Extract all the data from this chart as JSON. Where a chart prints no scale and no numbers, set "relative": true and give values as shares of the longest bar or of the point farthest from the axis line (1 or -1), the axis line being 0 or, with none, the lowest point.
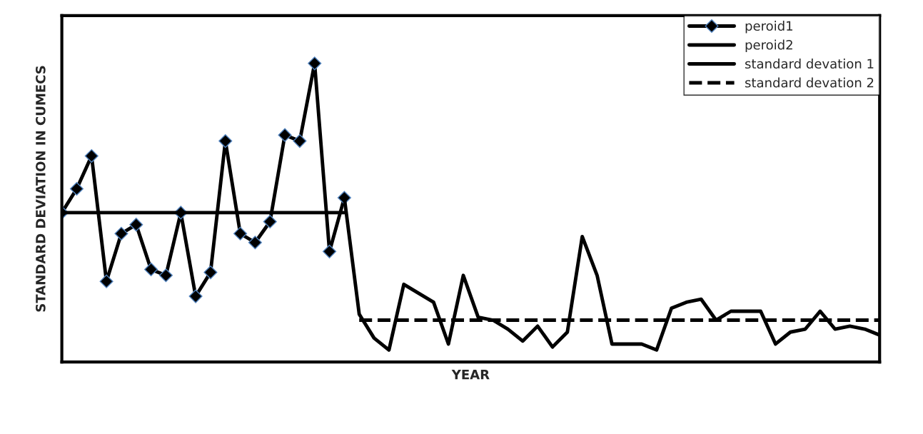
{
  "chart_data": {
    "type": "line",
    "relative": true,
    "xlabel": "YEAR",
    "ylabel": "STANDARD DEVIATION IN CUMECS",
    "categories": [
      null,
      null,
      null,
      null,
      null,
      null,
      null,
      null,
      null,
      null,
      null,
      null,
      null,
      null,
      null,
      null,
      null,
      null,
      null,
      null,
      null,
      null,
      null,
      null,
      null,
      null,
      null,
      null,
      null,
      null,
      null,
      null,
      null,
      null,
      null,
      null,
      null,
      null,
      null,
      null,
      null,
      null,
      null,
      null,
      null,
      null,
      null,
      null,
      null,
      null,
      null,
      null,
      null,
      null,
      null,
      null
    ],
    "legend": "top right",
    "series": [
      {
        "name": "peroid1",
        "color": "#000000",
        "marker": "diamond",
        "line_style": "solid",
        "values": [
          0.5,
          0.58,
          0.69,
          0.27,
          0.43,
          0.46,
          0.31,
          0.29,
          0.5,
          0.22,
          0.3,
          0.74,
          0.43,
          0.4,
          0.47,
          0.76,
          0.74,
          1.0,
          0.37,
          0.55,
          null,
          null,
          null,
          null,
          null,
          null,
          null,
          null,
          null,
          null,
          null,
          null,
          null,
          null,
          null,
          null,
          null,
          null,
          null,
          null,
          null,
          null,
          null,
          null,
          null,
          null,
          null,
          null,
          null,
          null,
          null,
          null,
          null,
          null,
          null,
          null
        ]
      },
      {
        "name": "peroid2",
        "color": "#000000",
        "marker": "none",
        "line_style": "solid",
        "values": [
          null,
          null,
          null,
          null,
          null,
          null,
          null,
          null,
          null,
          null,
          null,
          null,
          null,
          null,
          null,
          null,
          null,
          null,
          null,
          0.55,
          0.16,
          0.08,
          0.04,
          0.26,
          0.23,
          0.2,
          0.06,
          0.29,
          0.15,
          0.14,
          0.11,
          0.07,
          0.12,
          0.05,
          0.1,
          0.42,
          0.29,
          0.06,
          0.06,
          0.06,
          0.04,
          0.18,
          0.2,
          0.21,
          0.14,
          0.17,
          0.17,
          0.17,
          0.06,
          0.1,
          0.11,
          0.17,
          0.11,
          0.12,
          0.11,
          0.09
        ]
      },
      {
        "name": "standard devation 1",
        "color": "#000000",
        "marker": "none",
        "line_style": "solid",
        "values": [
          0.5,
          0.5,
          0.5,
          0.5,
          0.5,
          0.5,
          0.5,
          0.5,
          0.5,
          0.5,
          0.5,
          0.5,
          0.5,
          0.5,
          0.5,
          0.5,
          0.5,
          0.5,
          0.5,
          0.5,
          null,
          null,
          null,
          null,
          null,
          null,
          null,
          null,
          null,
          null,
          null,
          null,
          null,
          null,
          null,
          null,
          null,
          null,
          null,
          null,
          null,
          null,
          null,
          null,
          null,
          null,
          null,
          null,
          null,
          null,
          null,
          null,
          null,
          null,
          null,
          null
        ]
      },
      {
        "name": "standard devation 2",
        "color": "#000000",
        "marker": "none",
        "line_style": "dashed",
        "values": [
          null,
          null,
          null,
          null,
          null,
          null,
          null,
          null,
          null,
          null,
          null,
          null,
          null,
          null,
          null,
          null,
          null,
          null,
          null,
          null,
          0.14,
          0.14,
          0.14,
          0.14,
          0.14,
          0.14,
          0.14,
          0.14,
          0.14,
          0.14,
          0.14,
          0.14,
          0.14,
          0.14,
          0.14,
          0.14,
          0.14,
          0.14,
          0.14,
          0.14,
          0.14,
          0.14,
          0.14,
          0.14,
          0.14,
          0.14,
          0.14,
          0.14,
          0.14,
          0.14,
          0.14,
          0.14,
          0.14,
          0.14,
          0.14,
          0.14
        ]
      }
    ]
  }
}
